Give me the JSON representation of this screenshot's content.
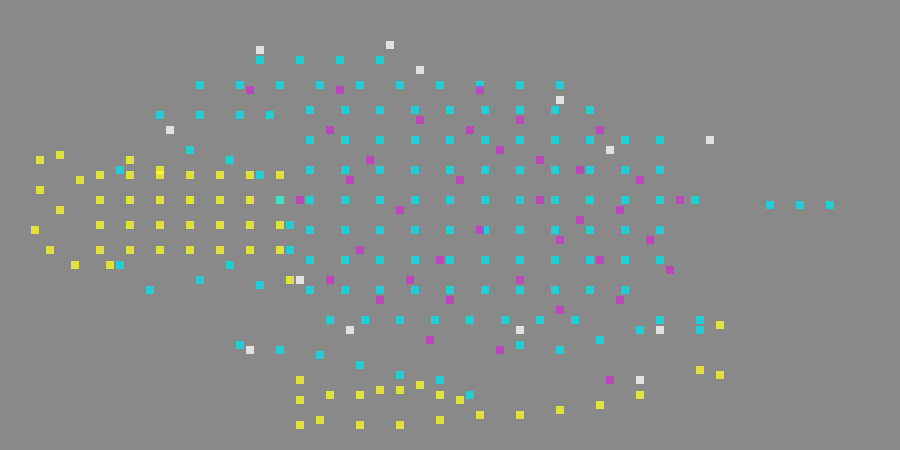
{
  "chart_data": {
    "type": "scatter",
    "xlim": [
      0,
      900
    ],
    "ylim": [
      0,
      450
    ],
    "grid": false,
    "tick_labels": false,
    "marker": "square",
    "series": [
      {
        "color": "#ffff22",
        "values": [
          [
            100,
            175
          ],
          [
            130,
            175
          ],
          [
            160,
            175
          ],
          [
            190,
            175
          ],
          [
            220,
            175
          ],
          [
            250,
            175
          ],
          [
            280,
            175
          ],
          [
            100,
            200
          ],
          [
            130,
            200
          ],
          [
            160,
            200
          ],
          [
            190,
            200
          ],
          [
            220,
            200
          ],
          [
            250,
            200
          ],
          [
            280,
            200
          ],
          [
            100,
            225
          ],
          [
            130,
            225
          ],
          [
            160,
            225
          ],
          [
            190,
            225
          ],
          [
            220,
            225
          ],
          [
            250,
            225
          ],
          [
            280,
            225
          ],
          [
            100,
            250
          ],
          [
            130,
            250
          ],
          [
            160,
            250
          ],
          [
            190,
            250
          ],
          [
            220,
            250
          ],
          [
            250,
            250
          ],
          [
            280,
            250
          ],
          [
            130,
            160
          ],
          [
            160,
            170
          ],
          [
            110,
            265
          ],
          [
            40,
            160
          ],
          [
            60,
            155
          ],
          [
            40,
            190
          ],
          [
            60,
            210
          ],
          [
            35,
            230
          ],
          [
            50,
            250
          ],
          [
            75,
            265
          ],
          [
            80,
            180
          ],
          [
            300,
            400
          ],
          [
            330,
            395
          ],
          [
            360,
            395
          ],
          [
            380,
            390
          ],
          [
            400,
            390
          ],
          [
            420,
            385
          ],
          [
            440,
            395
          ],
          [
            460,
            400
          ],
          [
            320,
            420
          ],
          [
            360,
            425
          ],
          [
            400,
            425
          ],
          [
            440,
            420
          ],
          [
            480,
            415
          ],
          [
            520,
            415
          ],
          [
            560,
            410
          ],
          [
            600,
            405
          ],
          [
            640,
            395
          ],
          [
            300,
            425
          ],
          [
            720,
            325
          ],
          [
            700,
            370
          ],
          [
            720,
            375
          ],
          [
            290,
            280
          ],
          [
            300,
            380
          ]
        ]
      },
      {
        "color": "#00e5ee",
        "values": [
          [
            310,
            110
          ],
          [
            345,
            110
          ],
          [
            380,
            110
          ],
          [
            415,
            110
          ],
          [
            450,
            110
          ],
          [
            485,
            110
          ],
          [
            520,
            110
          ],
          [
            555,
            110
          ],
          [
            590,
            110
          ],
          [
            310,
            140
          ],
          [
            345,
            140
          ],
          [
            380,
            140
          ],
          [
            415,
            140
          ],
          [
            450,
            140
          ],
          [
            485,
            140
          ],
          [
            520,
            140
          ],
          [
            555,
            140
          ],
          [
            590,
            140
          ],
          [
            625,
            140
          ],
          [
            660,
            140
          ],
          [
            310,
            170
          ],
          [
            345,
            170
          ],
          [
            380,
            170
          ],
          [
            415,
            170
          ],
          [
            450,
            170
          ],
          [
            485,
            170
          ],
          [
            520,
            170
          ],
          [
            555,
            170
          ],
          [
            590,
            170
          ],
          [
            625,
            170
          ],
          [
            660,
            170
          ],
          [
            310,
            200
          ],
          [
            345,
            200
          ],
          [
            380,
            200
          ],
          [
            415,
            200
          ],
          [
            450,
            200
          ],
          [
            485,
            200
          ],
          [
            520,
            200
          ],
          [
            555,
            200
          ],
          [
            590,
            200
          ],
          [
            625,
            200
          ],
          [
            660,
            200
          ],
          [
            695,
            200
          ],
          [
            310,
            230
          ],
          [
            345,
            230
          ],
          [
            380,
            230
          ],
          [
            415,
            230
          ],
          [
            450,
            230
          ],
          [
            485,
            230
          ],
          [
            520,
            230
          ],
          [
            555,
            230
          ],
          [
            590,
            230
          ],
          [
            625,
            230
          ],
          [
            660,
            230
          ],
          [
            310,
            260
          ],
          [
            345,
            260
          ],
          [
            380,
            260
          ],
          [
            415,
            260
          ],
          [
            450,
            260
          ],
          [
            485,
            260
          ],
          [
            520,
            260
          ],
          [
            555,
            260
          ],
          [
            590,
            260
          ],
          [
            625,
            260
          ],
          [
            660,
            260
          ],
          [
            310,
            290
          ],
          [
            345,
            290
          ],
          [
            380,
            290
          ],
          [
            415,
            290
          ],
          [
            450,
            290
          ],
          [
            485,
            290
          ],
          [
            520,
            290
          ],
          [
            555,
            290
          ],
          [
            590,
            290
          ],
          [
            625,
            290
          ],
          [
            330,
            320
          ],
          [
            365,
            320
          ],
          [
            400,
            320
          ],
          [
            435,
            320
          ],
          [
            470,
            320
          ],
          [
            505,
            320
          ],
          [
            540,
            320
          ],
          [
            575,
            320
          ],
          [
            660,
            320
          ],
          [
            700,
            320
          ],
          [
            260,
            60
          ],
          [
            300,
            60
          ],
          [
            340,
            60
          ],
          [
            380,
            60
          ],
          [
            200,
            85
          ],
          [
            240,
            85
          ],
          [
            280,
            85
          ],
          [
            320,
            85
          ],
          [
            360,
            85
          ],
          [
            400,
            85
          ],
          [
            440,
            85
          ],
          [
            480,
            85
          ],
          [
            520,
            85
          ],
          [
            560,
            85
          ],
          [
            160,
            115
          ],
          [
            200,
            115
          ],
          [
            240,
            115
          ],
          [
            270,
            115
          ],
          [
            190,
            150
          ],
          [
            230,
            160
          ],
          [
            260,
            175
          ],
          [
            200,
            280
          ],
          [
            230,
            265
          ],
          [
            260,
            285
          ],
          [
            290,
            250
          ],
          [
            120,
            170
          ],
          [
            120,
            265
          ],
          [
            150,
            290
          ],
          [
            280,
            200
          ],
          [
            290,
            225
          ],
          [
            240,
            345
          ],
          [
            280,
            350
          ],
          [
            320,
            355
          ],
          [
            360,
            365
          ],
          [
            400,
            375
          ],
          [
            440,
            380
          ],
          [
            470,
            395
          ],
          [
            520,
            345
          ],
          [
            560,
            350
          ],
          [
            600,
            340
          ],
          [
            640,
            330
          ],
          [
            700,
            330
          ],
          [
            770,
            205
          ],
          [
            800,
            205
          ],
          [
            830,
            205
          ]
        ]
      },
      {
        "color": "#cc33cc",
        "values": [
          [
            330,
            130
          ],
          [
            370,
            160
          ],
          [
            420,
            120
          ],
          [
            460,
            180
          ],
          [
            500,
            150
          ],
          [
            540,
            200
          ],
          [
            580,
            170
          ],
          [
            620,
            210
          ],
          [
            650,
            240
          ],
          [
            600,
            260
          ],
          [
            560,
            240
          ],
          [
            520,
            280
          ],
          [
            480,
            230
          ],
          [
            440,
            260
          ],
          [
            400,
            210
          ],
          [
            360,
            250
          ],
          [
            330,
            280
          ],
          [
            380,
            300
          ],
          [
            450,
            300
          ],
          [
            520,
            120
          ],
          [
            600,
            130
          ],
          [
            640,
            180
          ],
          [
            670,
            270
          ],
          [
            560,
            310
          ],
          [
            300,
            200
          ],
          [
            250,
            90
          ],
          [
            340,
            90
          ],
          [
            480,
            90
          ],
          [
            430,
            340
          ],
          [
            500,
            350
          ],
          [
            610,
            380
          ],
          [
            350,
            180
          ],
          [
            410,
            280
          ],
          [
            470,
            130
          ],
          [
            540,
            160
          ],
          [
            580,
            220
          ],
          [
            620,
            300
          ],
          [
            680,
            200
          ]
        ]
      },
      {
        "color": "#ffffff",
        "values": [
          [
            260,
            50
          ],
          [
            390,
            45
          ],
          [
            420,
            70
          ],
          [
            170,
            130
          ],
          [
            560,
            100
          ],
          [
            610,
            150
          ],
          [
            300,
            280
          ],
          [
            350,
            330
          ],
          [
            520,
            330
          ],
          [
            660,
            330
          ],
          [
            640,
            380
          ],
          [
            710,
            140
          ],
          [
            250,
            350
          ]
        ]
      }
    ]
  }
}
